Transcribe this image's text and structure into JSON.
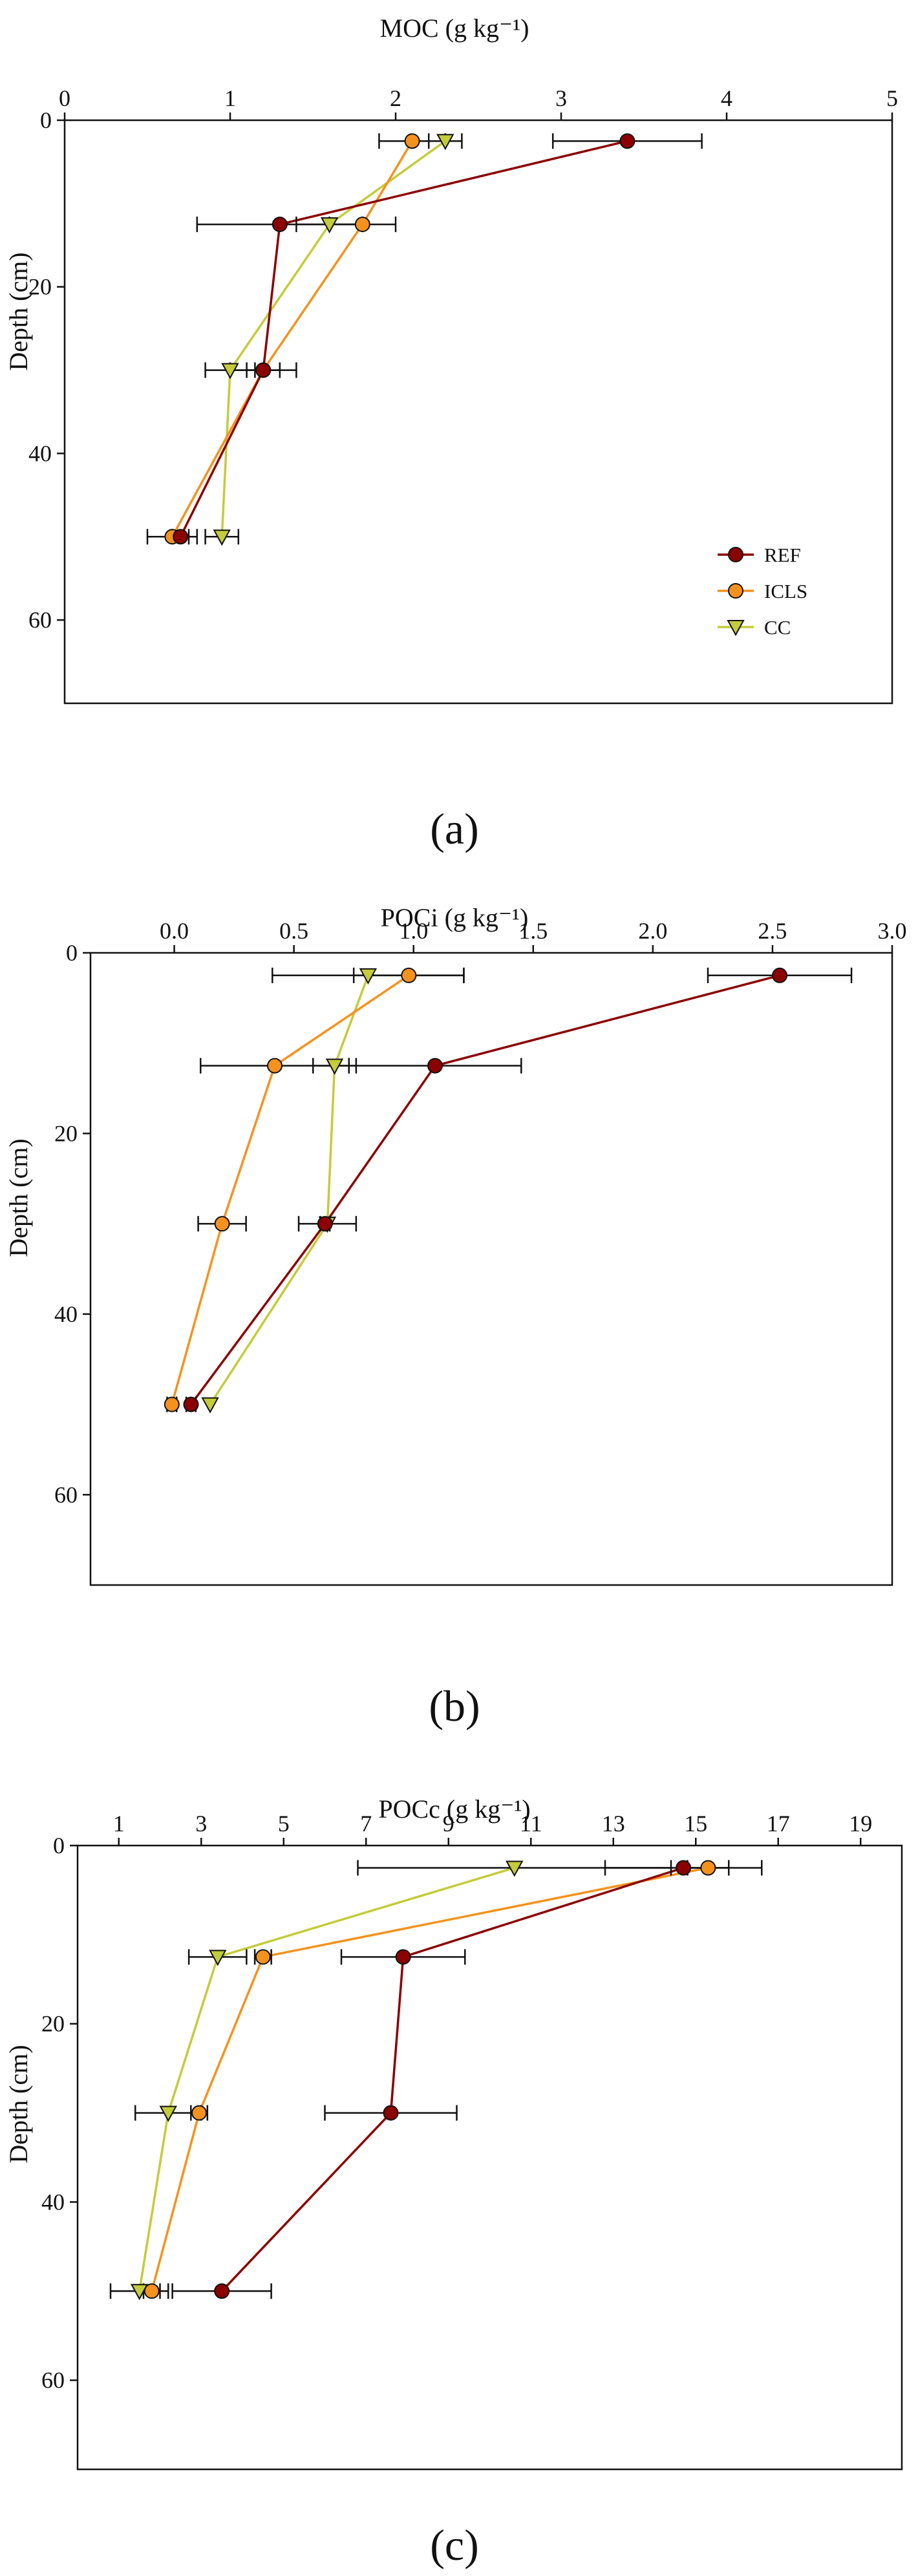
{
  "panels": [
    {
      "id": "a",
      "label": "(a)"
    },
    {
      "id": "b",
      "label": "(b)"
    },
    {
      "id": "c",
      "label": "(c)"
    }
  ],
  "colors": {
    "REF": "#8b0000",
    "ICLS": "#f5921e",
    "CC": "#c3cc3a",
    "axis": "#111111"
  },
  "chart_data": [
    {
      "type": "line",
      "id": "a",
      "panel_label": "(a)",
      "title": "",
      "xlabel": "MOC (g kg⁻¹)",
      "ylabel": "Depth (cm)",
      "xlim": [
        0,
        5
      ],
      "ylim": [
        70,
        0
      ],
      "x_axis_position": "top",
      "xticks": [
        0,
        1,
        2,
        3,
        4,
        5
      ],
      "yticks": [
        0,
        20,
        40,
        60
      ],
      "legend_position": "bottom-right",
      "legend": [
        "REF",
        "ICLS",
        "CC"
      ],
      "depths": [
        2.5,
        12.5,
        30,
        50
      ],
      "series": [
        {
          "name": "REF",
          "marker": "circle",
          "x": [
            3.4,
            1.3,
            1.2,
            0.7
          ],
          "xerr": [
            0.45,
            0.5,
            0.1,
            0.05
          ]
        },
        {
          "name": "ICLS",
          "marker": "circle",
          "x": [
            2.1,
            1.8,
            1.2,
            0.65
          ],
          "xerr": [
            0.2,
            0.2,
            0.2,
            0.15
          ]
        },
        {
          "name": "CC",
          "marker": "triangle",
          "x": [
            2.3,
            1.6,
            1.0,
            0.95
          ],
          "xerr": [
            0.1,
            0.2,
            0.15,
            0.1
          ]
        }
      ]
    },
    {
      "type": "line",
      "id": "b",
      "panel_label": "(b)",
      "title": "",
      "xlabel": "POCi (g kg⁻¹)",
      "ylabel": "Depth (cm)",
      "xlim": [
        -0.35,
        3.0
      ],
      "ylim": [
        70,
        0
      ],
      "x_axis_position": "top",
      "xticks": [
        0.0,
        0.5,
        1.0,
        1.5,
        2.0,
        2.5,
        3.0
      ],
      "yticks": [
        0,
        20,
        40,
        60
      ],
      "legend_position": "none",
      "depths": [
        2.5,
        12.5,
        30,
        50
      ],
      "series": [
        {
          "name": "REF",
          "marker": "circle",
          "x": [
            2.53,
            1.09,
            0.63,
            0.07
          ],
          "xerr": [
            0.3,
            0.36,
            0.02,
            0.02
          ]
        },
        {
          "name": "ICLS",
          "marker": "circle",
          "x": [
            0.98,
            0.42,
            0.2,
            -0.01
          ],
          "xerr": [
            0.23,
            0.31,
            0.1,
            0.02
          ]
        },
        {
          "name": "CC",
          "marker": "triangle",
          "x": [
            0.81,
            0.67,
            0.64,
            0.15
          ],
          "xerr": [
            0.4,
            0.09,
            0.12,
            0.0
          ]
        }
      ]
    },
    {
      "type": "line",
      "id": "c",
      "panel_label": "(c)",
      "title": "",
      "xlabel": "POCc (g kg⁻¹)",
      "ylabel": "Depth (cm)",
      "xlim": [
        0,
        20
      ],
      "ylim": [
        70,
        0
      ],
      "x_axis_position": "top",
      "xticks": [
        1,
        3,
        5,
        7,
        9,
        11,
        13,
        15,
        17,
        19
      ],
      "yticks": [
        0,
        20,
        40,
        60
      ],
      "legend_position": "none",
      "depths": [
        2.5,
        12.5,
        30,
        50
      ],
      "series": [
        {
          "name": "REF",
          "marker": "circle",
          "x": [
            14.7,
            7.9,
            7.6,
            3.5
          ],
          "xerr": [
            1.9,
            1.5,
            1.6,
            1.2
          ]
        },
        {
          "name": "ICLS",
          "marker": "circle",
          "x": [
            15.3,
            4.5,
            2.95,
            1.8
          ],
          "xerr": [
            0.5,
            0.2,
            0.2,
            0.2
          ]
        },
        {
          "name": "CC",
          "marker": "triangle",
          "x": [
            10.6,
            3.4,
            2.2,
            1.5
          ],
          "xerr": [
            3.8,
            0.7,
            0.8,
            0.7
          ]
        }
      ]
    }
  ]
}
